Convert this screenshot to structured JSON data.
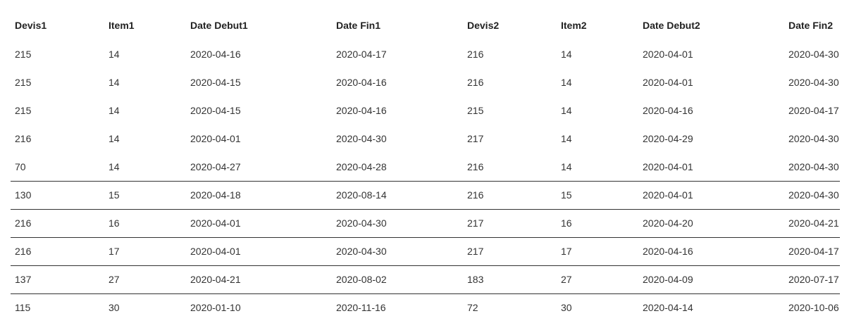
{
  "table": {
    "columns": [
      "Devis1",
      "Item1",
      "Date Debut1",
      "Date Fin1",
      "Devis2",
      "Item2",
      "Date Debut2",
      "Date Fin2"
    ],
    "rows": [
      [
        "215",
        "14",
        "2020-04-16",
        "2020-04-17",
        "216",
        "14",
        "2020-04-01",
        "2020-04-30"
      ],
      [
        "215",
        "14",
        "2020-04-15",
        "2020-04-16",
        "216",
        "14",
        "2020-04-01",
        "2020-04-30"
      ],
      [
        "215",
        "14",
        "2020-04-15",
        "2020-04-16",
        "215",
        "14",
        "2020-04-16",
        "2020-04-17"
      ],
      [
        "216",
        "14",
        "2020-04-01",
        "2020-04-30",
        "217",
        "14",
        "2020-04-29",
        "2020-04-30"
      ],
      [
        "70",
        "14",
        "2020-04-27",
        "2020-04-28",
        "216",
        "14",
        "2020-04-01",
        "2020-04-30"
      ],
      [
        "130",
        "15",
        "2020-04-18",
        "2020-08-14",
        "216",
        "15",
        "2020-04-01",
        "2020-04-30"
      ],
      [
        "216",
        "16",
        "2020-04-01",
        "2020-04-30",
        "217",
        "16",
        "2020-04-20",
        "2020-04-21"
      ],
      [
        "216",
        "17",
        "2020-04-01",
        "2020-04-30",
        "217",
        "17",
        "2020-04-16",
        "2020-04-17"
      ],
      [
        "137",
        "27",
        "2020-04-21",
        "2020-08-02",
        "183",
        "27",
        "2020-04-09",
        "2020-07-17"
      ],
      [
        "115",
        "30",
        "2020-01-10",
        "2020-11-16",
        "72",
        "30",
        "2020-04-14",
        "2020-10-06"
      ]
    ]
  }
}
